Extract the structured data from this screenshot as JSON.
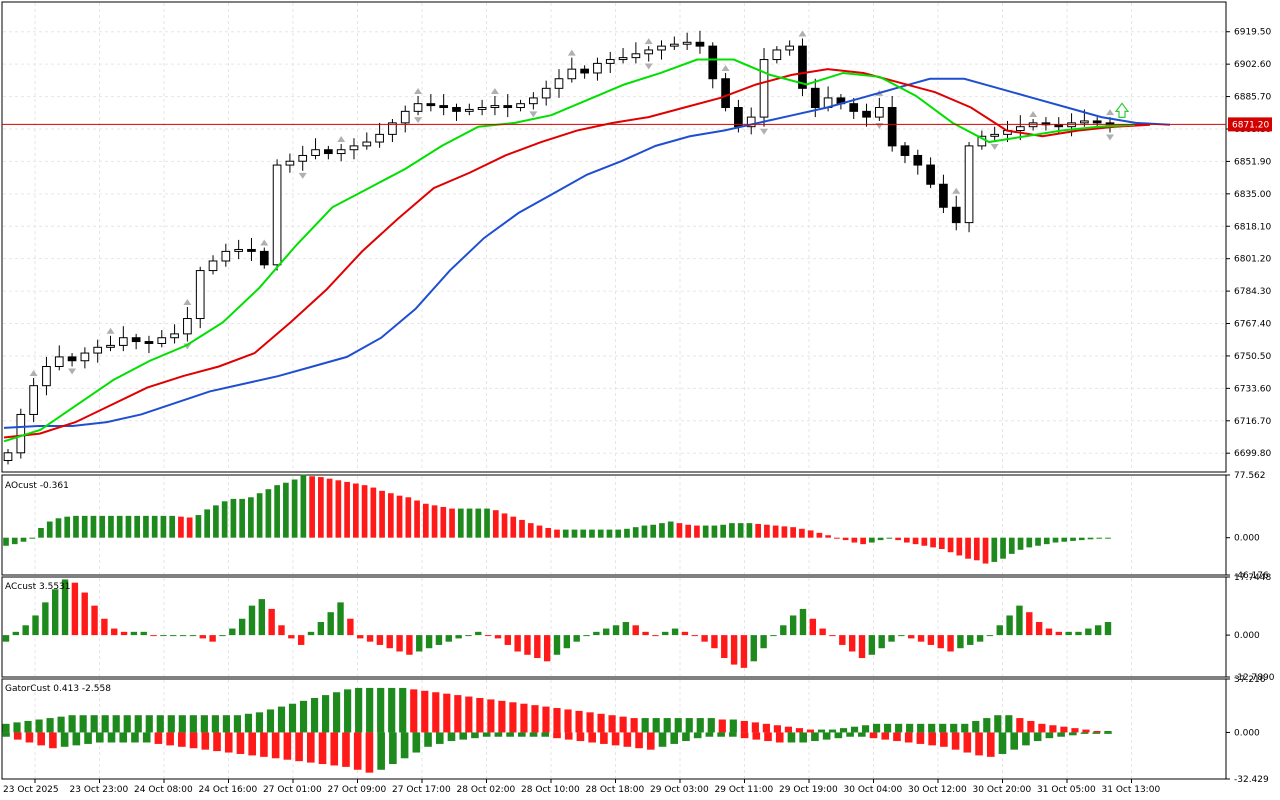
{
  "colors": {
    "background": "#ffffff",
    "grid": "#e6e6e6",
    "axis": "#000000",
    "bull_candle": "#ffffff",
    "bear_candle": "#000000",
    "jaw": "#1f4fd1",
    "teeth": "#e00000",
    "lips": "#00e000",
    "price_line": "#d40000",
    "hist_up": "#1e8a1e",
    "hist_down": "#ff1a1a",
    "fractal": "#b0b0b0",
    "signal_arrow": "#33cc33"
  },
  "chart_data": [
    {
      "panel": "main",
      "type": "candlestick",
      "ylim": [
        6690,
        6935
      ],
      "y_ticks": [
        "6919.50",
        "6902.60",
        "6885.70",
        "6868.80",
        "6851.90",
        "6835.00",
        "6818.10",
        "6801.20",
        "6784.30",
        "6767.40",
        "6750.50",
        "6733.60",
        "6716.70",
        "6699.80"
      ],
      "current_price": "6871.20",
      "bars": 100,
      "ohlc_close_path": [
        6700,
        6720,
        6735,
        6745,
        6750,
        6748,
        6752,
        6755,
        6756,
        6760,
        6758,
        6757,
        6760,
        6762,
        6770,
        6795,
        6800,
        6805,
        6806,
        6805,
        6798,
        6850,
        6852,
        6855,
        6858,
        6856,
        6858,
        6860,
        6862,
        6866,
        6872,
        6878,
        6882,
        6881,
        6880,
        6878,
        6879,
        6880,
        6881,
        6880,
        6882,
        6885,
        6890,
        6895,
        6900,
        6898,
        6903,
        6905,
        6906,
        6908,
        6910,
        6912,
        6913,
        6914,
        6912,
        6895,
        6880,
        6870,
        6875,
        6905,
        6910,
        6912,
        6890,
        6880,
        6885,
        6882,
        6878,
        6875,
        6880,
        6860,
        6855,
        6850,
        6840,
        6828,
        6820,
        6860,
        6865,
        6866,
        6868,
        6870,
        6872,
        6871,
        6870,
        6872,
        6873,
        6872,
        6871
      ],
      "alligator": {
        "jaw_path": [
          6713,
          6714,
          6714,
          6716,
          6720,
          6726,
          6732,
          6736,
          6740,
          6745,
          6750,
          6760,
          6775,
          6795,
          6812,
          6825,
          6835,
          6845,
          6852,
          6860,
          6865,
          6868,
          6872,
          6876,
          6880,
          6885,
          6890,
          6895,
          6895,
          6890,
          6885,
          6880,
          6875,
          6872,
          6871
        ],
        "teeth_path": [
          6708,
          6710,
          6716,
          6725,
          6734,
          6740,
          6745,
          6752,
          6768,
          6785,
          6805,
          6822,
          6838,
          6846,
          6855,
          6862,
          6868,
          6872,
          6875,
          6880,
          6885,
          6892,
          6897,
          6900,
          6898,
          6893,
          6888,
          6880,
          6868,
          6865,
          6868,
          6870,
          6871
        ],
        "lips_path": [
          6706,
          6712,
          6725,
          6738,
          6748,
          6756,
          6768,
          6786,
          6808,
          6828,
          6838,
          6848,
          6860,
          6870,
          6872,
          6876,
          6884,
          6892,
          6898,
          6905,
          6905,
          6897,
          6892,
          6898,
          6896,
          6886,
          6872,
          6862,
          6865,
          6868,
          6870,
          6871
        ]
      }
    },
    {
      "panel": "AOcust",
      "title": "AOcust -0.361",
      "type": "bar",
      "ylim": [
        -46.176,
        77.562
      ],
      "y_ticks": [
        "77.562",
        "0.000",
        "-46.176"
      ],
      "values": [
        -10,
        -8,
        -5,
        0,
        12,
        20,
        24,
        26,
        27,
        27,
        27,
        27,
        27,
        27,
        27,
        27,
        27,
        27,
        27,
        27,
        26,
        25,
        28,
        35,
        40,
        45,
        48,
        48,
        50,
        55,
        60,
        65,
        68,
        72,
        78,
        76,
        75,
        73,
        71,
        69,
        67,
        65,
        62,
        58,
        55,
        52,
        50,
        46,
        42,
        40,
        38,
        36,
        36,
        36,
        36,
        36,
        34,
        30,
        26,
        22,
        18,
        15,
        12,
        10,
        10,
        10,
        10,
        10,
        10,
        10,
        10,
        11,
        13,
        15,
        16,
        18,
        20,
        18,
        16,
        15,
        15,
        15,
        16,
        18,
        18,
        18,
        17,
        16,
        15,
        14,
        13,
        11,
        9,
        6,
        3,
        0,
        -3,
        -6,
        -8,
        -6,
        -3,
        -1,
        -3,
        -6,
        -8,
        -10,
        -12,
        -14,
        -18,
        -22,
        -26,
        -28,
        -32,
        -30,
        -26,
        -20,
        -15,
        -12,
        -10,
        -8,
        -6,
        -5,
        -4,
        -3,
        -2,
        -1,
        0
      ]
    },
    {
      "panel": "ACcust",
      "title": "ACcust 3.5531",
      "type": "bar",
      "ylim": [
        -12.789,
        17.7448
      ],
      "y_ticks": [
        "17.7448",
        "0.000",
        "-12.7890"
      ],
      "values": [
        -2,
        1,
        3,
        6,
        10,
        14,
        17,
        16,
        13,
        9,
        5,
        2,
        1,
        1,
        1,
        0,
        0,
        0,
        0,
        0,
        -1,
        -2,
        0,
        2,
        5,
        9,
        11,
        8,
        3,
        -1,
        -3,
        1,
        4,
        7,
        10,
        5,
        -1,
        -2,
        -3,
        -4,
        -5,
        -6,
        -5,
        -4,
        -3,
        -2,
        -1,
        0,
        1,
        0,
        -1,
        -3,
        -5,
        -6,
        -7,
        -8,
        -6,
        -4,
        -2,
        0,
        1,
        2,
        3,
        4,
        3,
        1,
        0,
        1,
        2,
        1,
        0,
        -2,
        -4,
        -7,
        -9,
        -10,
        -8,
        -4,
        0,
        3,
        6,
        8,
        5,
        2,
        0,
        -3,
        -5,
        -7,
        -6,
        -4,
        -2,
        0,
        -1,
        -2,
        -3,
        -4,
        -5,
        -4,
        -3,
        -2,
        0,
        3,
        6,
        9,
        7,
        4,
        2,
        1,
        1,
        1,
        2,
        3,
        4
      ]
    },
    {
      "panel": "GatorCust",
      "title": "GatorCust 0.413 -2.558",
      "type": "bar",
      "ylim": [
        -32.429,
        37.216
      ],
      "y_ticks": [
        "37.216",
        "0.000",
        "-32.429"
      ],
      "upper_values": [
        6,
        7,
        8,
        9,
        10,
        11,
        12,
        12,
        12,
        12,
        12,
        12,
        12,
        12,
        12,
        12,
        12,
        12,
        12,
        12,
        12,
        12,
        13,
        14,
        16,
        18,
        20,
        22,
        24,
        26,
        28,
        30,
        31,
        31,
        31,
        31,
        31,
        30,
        29,
        28,
        27,
        26,
        25,
        24,
        23,
        22,
        21,
        20,
        19,
        18,
        17,
        16,
        15,
        14,
        13,
        12,
        11,
        10,
        10,
        10,
        10,
        10,
        10,
        10,
        10,
        9,
        9,
        8,
        7,
        6,
        5,
        4,
        3,
        2,
        2,
        2,
        3,
        4,
        5,
        6,
        6,
        6,
        6,
        6,
        6,
        6,
        6,
        6,
        8,
        10,
        12,
        12,
        10,
        8,
        6,
        5,
        4,
        3,
        2,
        1,
        1
      ],
      "lower_values": [
        -3,
        -5,
        -7,
        -9,
        -11,
        -10,
        -9,
        -8,
        -7,
        -7,
        -7,
        -7,
        -7,
        -8,
        -9,
        -10,
        -11,
        -12,
        -13,
        -14,
        -15,
        -16,
        -17,
        -18,
        -19,
        -20,
        -21,
        -22,
        -23,
        -24,
        -26,
        -28,
        -26,
        -22,
        -18,
        -14,
        -10,
        -8,
        -6,
        -5,
        -4,
        -3,
        -3,
        -3,
        -3,
        -3,
        -3,
        -4,
        -5,
        -6,
        -7,
        -8,
        -9,
        -10,
        -11,
        -12,
        -10,
        -8,
        -6,
        -4,
        -3,
        -3,
        -3,
        -4,
        -5,
        -6,
        -7,
        -7,
        -7,
        -6,
        -5,
        -4,
        -3,
        -3,
        -4,
        -5,
        -6,
        -7,
        -8,
        -9,
        -10,
        -12,
        -14,
        -16,
        -17,
        -15,
        -12,
        -9,
        -6,
        -4,
        -3,
        -2,
        -1,
        -1,
        -1
      ]
    }
  ],
  "x_axis": {
    "labels": [
      "23 Oct 2025",
      "23 Oct 23:00",
      "24 Oct 08:00",
      "24 Oct 16:00",
      "27 Oct 01:00",
      "27 Oct 09:00",
      "27 Oct 17:00",
      "28 Oct 02:00",
      "28 Oct 10:00",
      "28 Oct 18:00",
      "29 Oct 03:00",
      "29 Oct 11:00",
      "29 Oct 19:00",
      "30 Oct 04:00",
      "30 Oct 12:00",
      "30 Oct 20:00",
      "31 Oct 05:00",
      "31 Oct 13:00"
    ]
  }
}
